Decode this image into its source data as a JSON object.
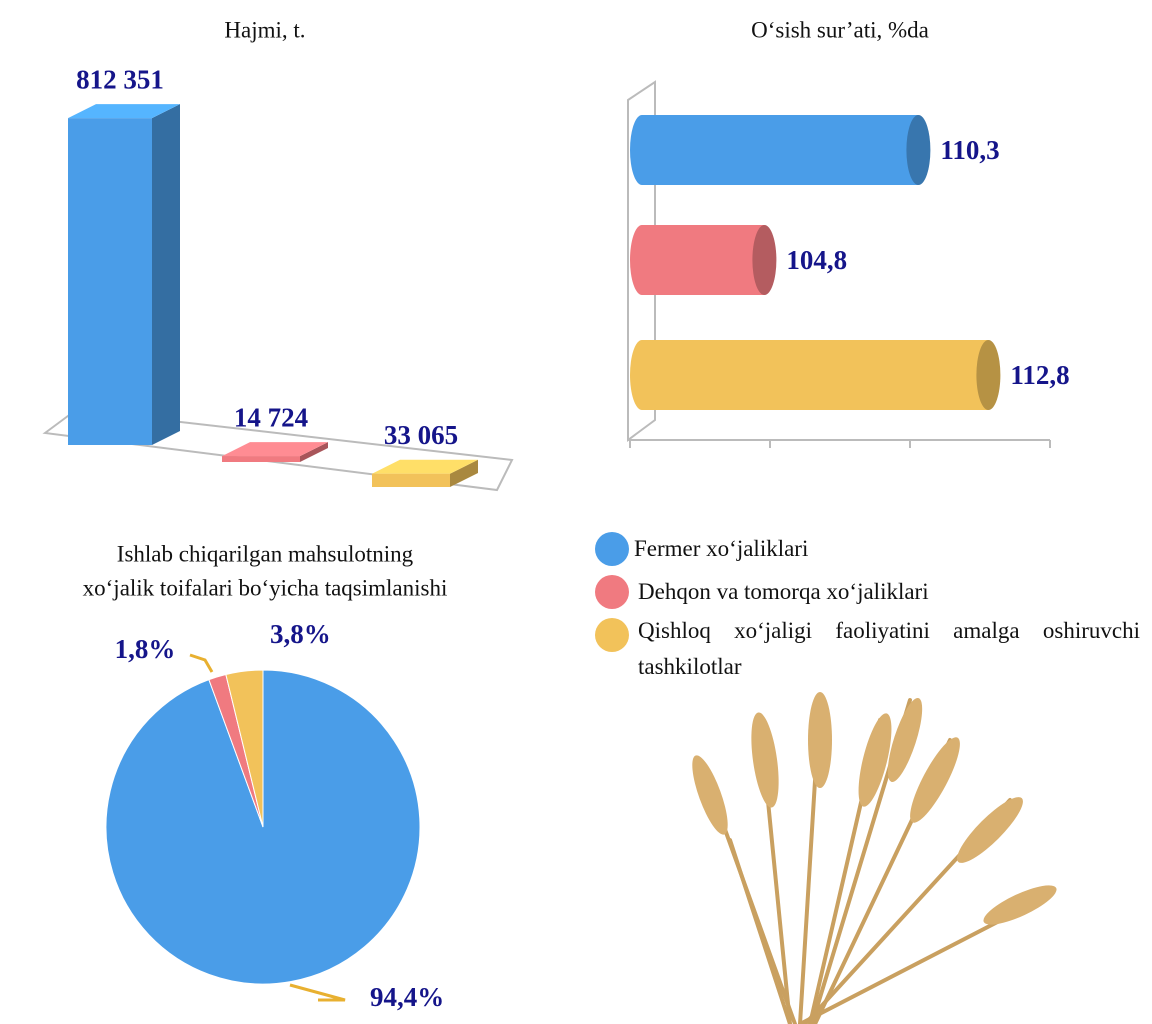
{
  "chart_data": [
    {
      "type": "bar3d",
      "title": "Hajmi, t.",
      "categories": [
        null,
        null,
        null
      ],
      "values": [
        812351,
        14724,
        33065
      ],
      "value_labels": [
        "812 351",
        "14 724",
        "33 065"
      ],
      "colors": [
        "#4a9de8",
        "#f07a80",
        "#f2c25a"
      ],
      "ylim": [
        0,
        850000
      ]
    },
    {
      "type": "hbar3d",
      "title": "O‘sish sur’ati, %da",
      "categories": [
        null,
        null,
        null
      ],
      "values": [
        110.3,
        104.8,
        112.8
      ],
      "value_labels": [
        "110,3",
        "104,8",
        "112,8"
      ],
      "colors": [
        "#4a9de8",
        "#f07a80",
        "#f2c25a"
      ],
      "xlim": [
        100,
        115
      ],
      "xticks": [
        100,
        105,
        110,
        115
      ]
    },
    {
      "type": "pie",
      "title": [
        "Ishlab chiqarilgan mahsulotning",
        "xo‘jalik toifalari bo‘yicha taqsimlanishi"
      ],
      "categories": [
        null,
        null,
        null
      ],
      "values": [
        94.4,
        1.8,
        3.8
      ],
      "value_labels": [
        "94,4%",
        "1,8%",
        "3,8%"
      ],
      "colors": [
        "#4a9de8",
        "#f07a80",
        "#f2c25a"
      ]
    }
  ],
  "legend": [
    {
      "name": "Fermer xo‘jaliklari",
      "color": "#4a9de8"
    },
    {
      "name": "Dehqon va tomorqa xo‘jaliklari",
      "color": "#f07a80"
    },
    {
      "name": "Qishloq xo‘jaligi faoliyatini amalga oshiruvchi tashkilotlar",
      "color": "#f2c25a"
    }
  ]
}
